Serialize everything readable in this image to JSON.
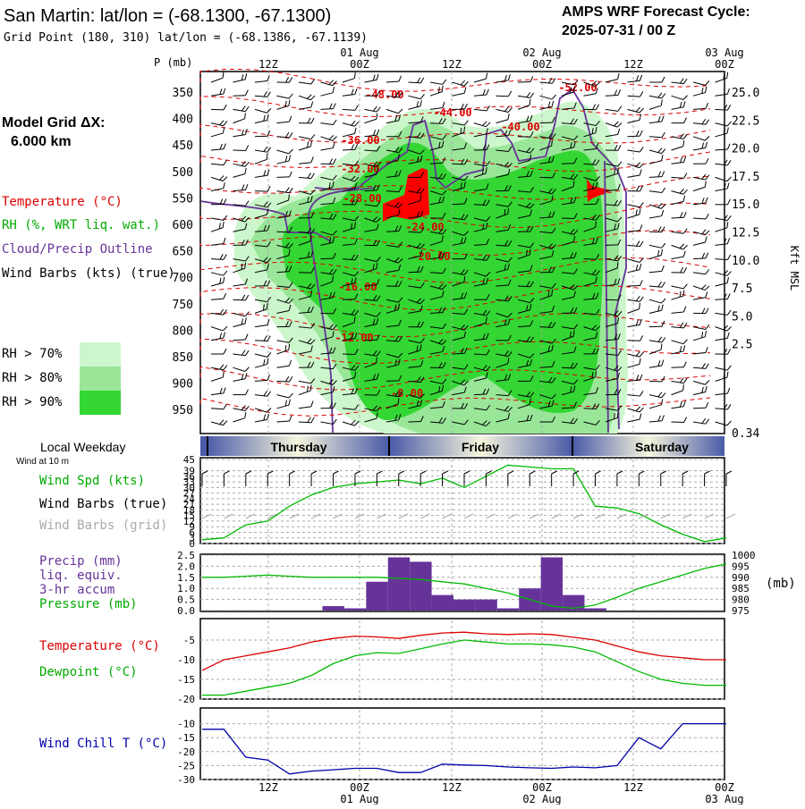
{
  "header": {
    "title": "San Martin:  lat/lon = (-68.1300, -67.1300)",
    "grid_point": "Grid Point (180, 310) lat/lon = (-68.1386, -67.1139)",
    "cycle_label": "AMPS WRF Forecast Cycle:",
    "cycle_value": "2025-07-31 / 00  Z"
  },
  "left_labels": {
    "model_grid": "Model Grid ΔX:",
    "model_dx": "6.000 km",
    "temperature": "Temperature (°C)",
    "rh": "RH (%, WRT liq. wat.)",
    "cloud": "Cloud/Precip Outline",
    "wind_barbs": "Wind Barbs (kts) (true)",
    "rh70": "RH > 70%",
    "rh80": "RH > 80%",
    "rh90": "RH > 90%",
    "local_weekday": "Local Weekday",
    "wind_10m": "Wind at 10 m",
    "wind_spd": "Wind Spd (kts)",
    "barbs_true": "Wind Barbs (true)",
    "barbs_grid": "Wind Barbs (grid)",
    "precip": "Precip (mm)",
    "liq": "liq. equiv.",
    "accum": "3-hr accum",
    "pressure": "Pressure (mb)",
    "temp2": "Temperature (°C)",
    "dewpoint": "Dewpoint (°C)",
    "windchill": "Wind Chill T (°C)"
  },
  "colors": {
    "rh70": "#ccf7cc",
    "rh80": "#99e699",
    "rh90": "#33d633",
    "temperature": "#dd0000",
    "dewpoint": "#00bb00",
    "cloud": "#663399",
    "precip": "#663399",
    "windchill": "#0000aa"
  },
  "time_axis": {
    "top_labels": [
      "12Z",
      "00Z",
      "12Z",
      "00Z",
      "12Z",
      "00Z"
    ],
    "date_labels": [
      "01 Aug",
      "02 Aug",
      "03 Aug"
    ],
    "bottom_labels": [
      "12Z",
      "00Z",
      "12Z",
      "00Z",
      "12Z",
      "00Z"
    ]
  },
  "weekdays": [
    "Thursday",
    "Friday",
    "Saturday"
  ],
  "chart_data": [
    {
      "type": "heatmap",
      "name": "cross-section",
      "ylabel_left": "P (mb)",
      "ylabel_right": "Kft MSL",
      "pressure_ticks": [
        "350",
        "400",
        "450",
        "500",
        "550",
        "600",
        "650",
        "700",
        "750",
        "800",
        "850",
        "900",
        "950"
      ],
      "height_ticks": [
        "25.0",
        "22.5",
        "20.0",
        "17.5",
        "15.0",
        "12.5",
        "10.0",
        "7.5",
        "5.0",
        "2.5",
        "0.34"
      ],
      "temp_labels": [
        "-48.00",
        "-44.00",
        "-52.00",
        "-40.00",
        "-36.00",
        "-32.00",
        "-28.00",
        "-24.00",
        "-20.00",
        "-16.00",
        "-12.00",
        "-8.00"
      ]
    },
    {
      "type": "line",
      "name": "wind-speed",
      "yticks": [
        "45",
        "39",
        "36",
        "33",
        "30",
        "27",
        "24",
        "21",
        "18",
        "15",
        "12",
        "9",
        "6",
        "3",
        "0"
      ],
      "ylim": [
        0,
        45
      ],
      "x": [
        0,
        3,
        6,
        9,
        12,
        15,
        18,
        21,
        24,
        27,
        30,
        33,
        36,
        39,
        42,
        45,
        48,
        51,
        54,
        57,
        60,
        63,
        66,
        69,
        72
      ],
      "values": [
        2,
        3,
        10,
        12,
        20,
        26,
        30,
        32,
        33,
        34,
        32,
        35,
        30,
        36,
        42,
        41,
        40,
        40,
        20,
        19,
        16,
        10,
        5,
        1,
        3
      ]
    },
    {
      "type": "bar",
      "name": "precip-pressure",
      "yticks_left": [
        "2.5",
        "2.0",
        "1.5",
        "1.0",
        "0.5",
        "0.0"
      ],
      "yticks_right": [
        "1000",
        "995",
        "990",
        "985",
        "980",
        "975"
      ],
      "ylim_left": [
        0,
        2.5
      ],
      "ylim_right": [
        975,
        1000
      ],
      "x": [
        0,
        3,
        6,
        9,
        12,
        15,
        18,
        21,
        24,
        27,
        30,
        33,
        36,
        39,
        42,
        45,
        48,
        51,
        54,
        57,
        60,
        63,
        66,
        69,
        72
      ],
      "precip_3h": [
        0,
        0,
        0,
        0,
        0,
        0,
        0.2,
        0.1,
        1.3,
        2.4,
        2.2,
        0.7,
        0.5,
        0.5,
        0.1,
        1.0,
        2.4,
        0.7,
        0.1,
        0,
        0,
        0,
        0,
        0,
        0
      ],
      "pressure": [
        990,
        990,
        990.5,
        991,
        990.5,
        990,
        990,
        990,
        990,
        989.5,
        989,
        988,
        987,
        985,
        983,
        980,
        977,
        976,
        977.5,
        981,
        985,
        988,
        991,
        994,
        996
      ]
    },
    {
      "type": "line",
      "name": "temperature-dewpoint",
      "yticks": [
        "-5",
        "-10",
        "-15",
        "-20"
      ],
      "ylim": [
        -20,
        0
      ],
      "x": [
        0,
        3,
        6,
        9,
        12,
        15,
        18,
        21,
        24,
        27,
        30,
        33,
        36,
        39,
        42,
        45,
        48,
        51,
        54,
        57,
        60,
        63,
        66,
        69,
        72
      ],
      "temperature": [
        -12.7,
        -10,
        -9,
        -8,
        -7,
        -5.5,
        -4.6,
        -4.0,
        -4.2,
        -4.6,
        -3.8,
        -3.2,
        -3.0,
        -3.4,
        -3.6,
        -3.4,
        -3.6,
        -4.3,
        -5.0,
        -6.5,
        -8.0,
        -9.0,
        -9.5,
        -10,
        -10
      ],
      "dewpoint": [
        -19,
        -19,
        -18,
        -17,
        -16,
        -14,
        -11,
        -9,
        -8.2,
        -8.4,
        -7.2,
        -6.0,
        -5.0,
        -5.5,
        -6.0,
        -6.0,
        -6.2,
        -6.8,
        -8.0,
        -10.5,
        -13,
        -15,
        -16,
        -16.5,
        -16.5
      ]
    },
    {
      "type": "line",
      "name": "wind-chill",
      "yticks": [
        "-10",
        "-15",
        "-20",
        "-25",
        "-30"
      ],
      "ylim": [
        -30,
        -5
      ],
      "x": [
        0,
        3,
        6,
        9,
        12,
        15,
        18,
        21,
        24,
        27,
        30,
        33,
        36,
        39,
        42,
        45,
        48,
        51,
        54,
        57,
        60,
        63,
        66,
        69,
        72
      ],
      "windchill": [
        -12,
        -12,
        -22,
        -23,
        -28,
        -27,
        -26.5,
        -26,
        -26,
        -27.5,
        -27.5,
        -24.5,
        -24.8,
        -25,
        -25.5,
        -25.8,
        -26,
        -25.5,
        -25.8,
        -25,
        -15,
        -19,
        -10,
        -10,
        -10
      ]
    }
  ]
}
